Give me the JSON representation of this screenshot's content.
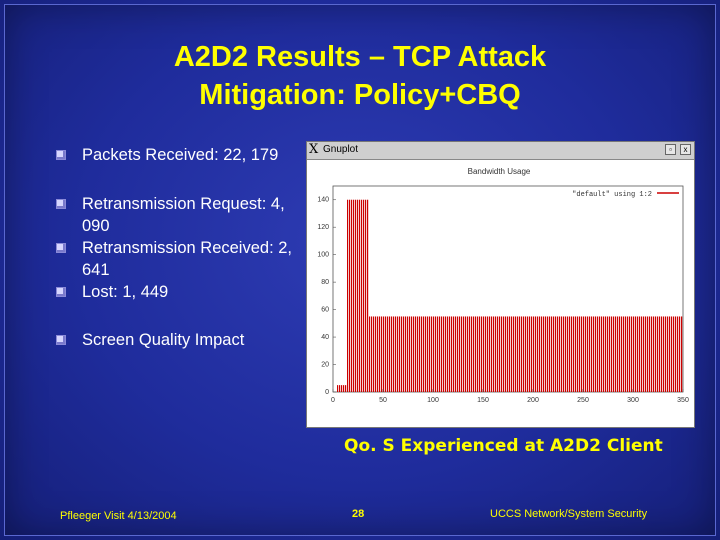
{
  "slide": {
    "title_line1": "A2D2 Results – TCP Attack",
    "title_line2": "Mitigation: Policy+CBQ",
    "bullets": [
      {
        "text": "Packets Received: 22, 179"
      },
      {
        "text": "Retransmission Request: 4, 090"
      },
      {
        "text": "Retransmission Received: 2, 641"
      },
      {
        "text": "Lost: 1, 449"
      },
      {
        "text": "Screen Quality Impact"
      }
    ],
    "caption": "Qo. S Experienced at A2D2 Client",
    "footer_left": "Pfleeger Visit 4/13/2004",
    "page_number": "28",
    "footer_right": "UCCS Network/System Security"
  },
  "graph_window": {
    "app_title": "Gnuplot",
    "chart_label": "Bandwidth Usage",
    "legend": "\"default\" using 1:2",
    "close_glyph": "x"
  },
  "colors": {
    "title": "#ffff00",
    "bullet_text": "#ffffff",
    "series": "#cc0000",
    "background": "#1f2c9c"
  },
  "chart_data": {
    "type": "bar",
    "title": "Bandwidth Usage",
    "xlim": [
      0,
      350
    ],
    "ylim": [
      0,
      150
    ],
    "x_ticks": [
      "0",
      "50",
      "100",
      "150",
      "200",
      "250",
      "300",
      "350"
    ],
    "y_ticks": [
      "0",
      "20",
      "40",
      "60",
      "80",
      "100",
      "120",
      "140"
    ],
    "series": [
      {
        "name": "\"default\" using 1:2",
        "segments": [
          {
            "from": 0,
            "to": 4,
            "value": 0
          },
          {
            "from": 4,
            "to": 14,
            "value": 5
          },
          {
            "from": 14,
            "to": 36,
            "value": 140
          },
          {
            "from": 36,
            "to": 350,
            "value": 55
          }
        ]
      }
    ]
  }
}
